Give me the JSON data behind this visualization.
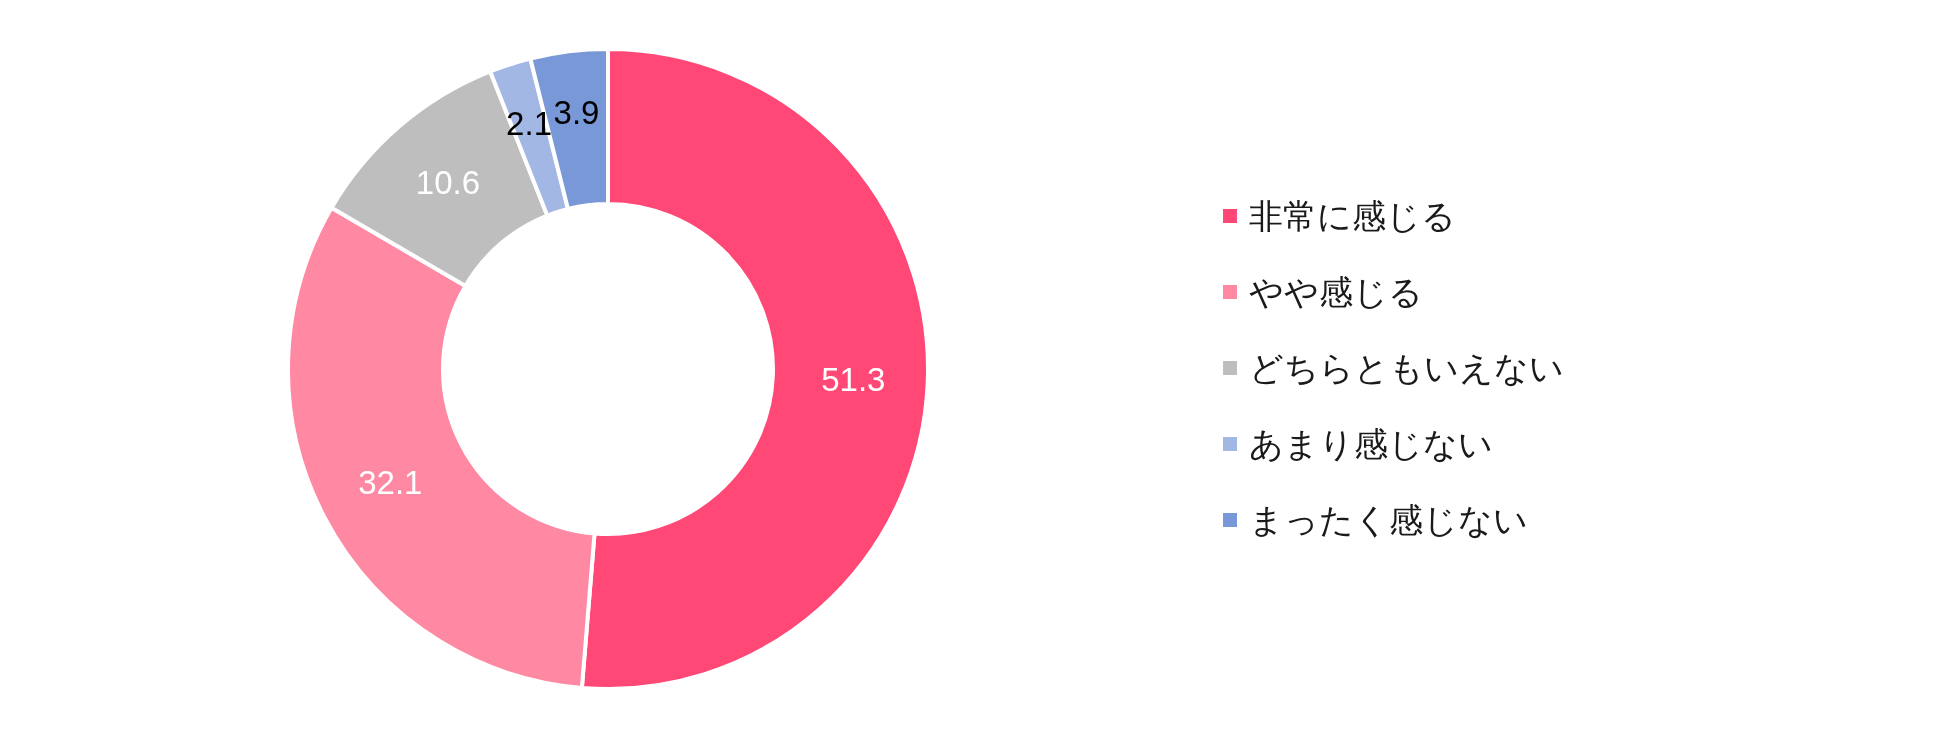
{
  "chart_data": {
    "type": "donut",
    "categories": [
      "非常に感じる",
      "やや感じる",
      "どちらともいえない",
      "あまり感じない",
      "まったく感じない"
    ],
    "values": [
      51.3,
      32.1,
      10.6,
      2.1,
      3.9
    ],
    "colors": [
      "#ff4876",
      "#ff88a2",
      "#bebebe",
      "#a3b7e5",
      "#7898d7"
    ],
    "data_labels": true,
    "legend": "right"
  }
}
